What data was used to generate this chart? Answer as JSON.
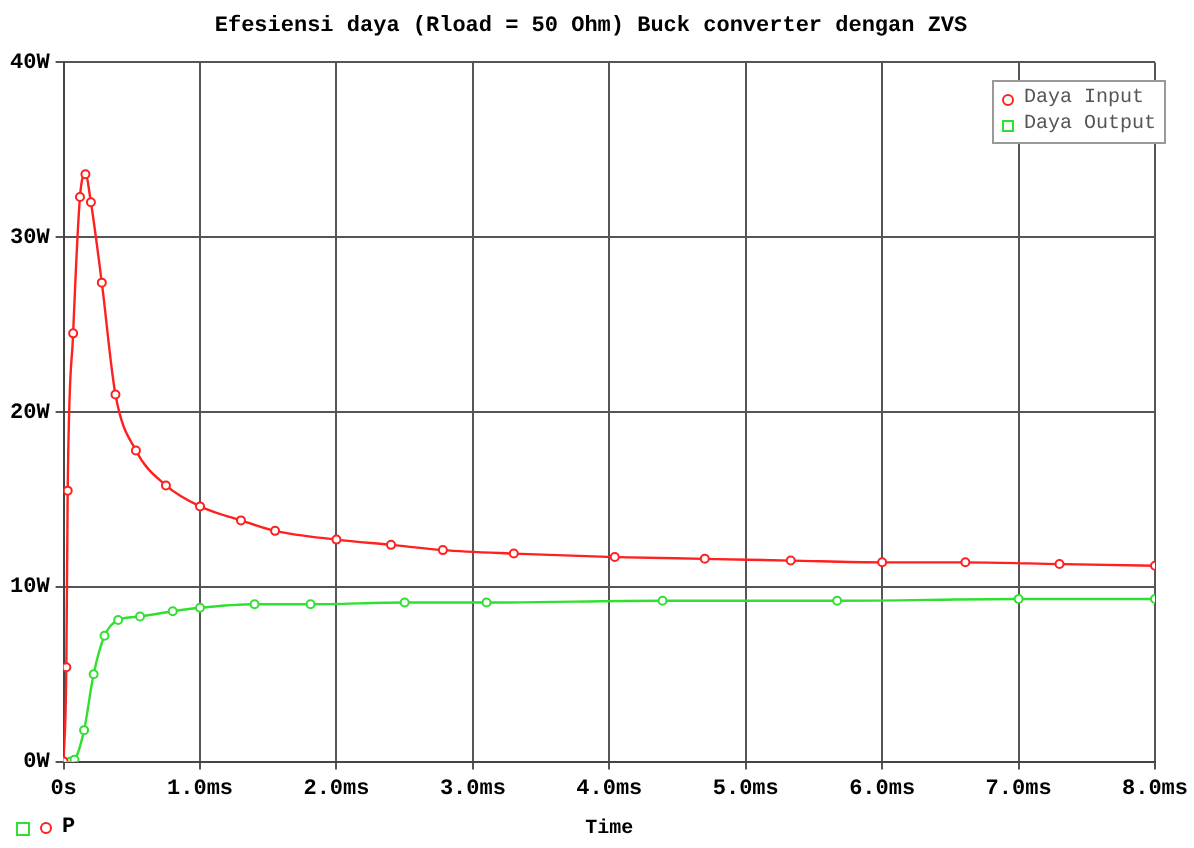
{
  "chart_data": {
    "type": "line",
    "title": "Efesiensi daya (Rload = 50 Ohm) Buck converter dengan ZVS",
    "xlabel": "Time",
    "annotations": [
      "P"
    ],
    "xlim": [
      0,
      8
    ],
    "xticks": [
      {
        "value": 0,
        "label": "0s"
      },
      {
        "value": 1,
        "label": "1.0ms"
      },
      {
        "value": 2,
        "label": "2.0ms"
      },
      {
        "value": 3,
        "label": "3.0ms"
      },
      {
        "value": 4,
        "label": "4.0ms"
      },
      {
        "value": 5,
        "label": "5.0ms"
      },
      {
        "value": 6,
        "label": "6.0ms"
      },
      {
        "value": 7,
        "label": "7.0ms"
      },
      {
        "value": 8,
        "label": "8.0ms"
      }
    ],
    "ylim": [
      0,
      40
    ],
    "yticks": [
      {
        "value": 0,
        "label": "0W"
      },
      {
        "value": 10,
        "label": "10W"
      },
      {
        "value": 20,
        "label": "20W"
      },
      {
        "value": 30,
        "label": "30W"
      },
      {
        "value": 40,
        "label": "40W"
      }
    ],
    "grid": true,
    "legend": "top right",
    "marker": "circle",
    "line_style": "solid",
    "series": [
      {
        "name": "Daya Input",
        "color": "#ff2020",
        "x": [
          0,
          0.02,
          0.03,
          0.07,
          0.12,
          0.16,
          0.2,
          0.28,
          0.38,
          0.53,
          0.75,
          1.0,
          1.3,
          1.55,
          2.0,
          2.4,
          2.78,
          3.3,
          4.04,
          4.7,
          5.33,
          6.0,
          6.61,
          7.3,
          8.0
        ],
        "values": [
          0,
          5.4,
          15.5,
          24.5,
          32.3,
          33.6,
          32,
          27.4,
          21,
          17.8,
          15.8,
          14.6,
          13.8,
          13.2,
          12.7,
          12.4,
          12.1,
          11.9,
          11.7,
          11.6,
          11.5,
          11.4,
          11.4,
          11.3,
          11.2
        ]
      },
      {
        "name": "Daya Output",
        "color": "#30e030",
        "x": [
          0,
          0.05,
          0.08,
          0.15,
          0.22,
          0.3,
          0.4,
          0.56,
          0.8,
          1.0,
          1.4,
          1.81,
          2.5,
          3.1,
          4.39,
          5.67,
          7.0,
          8.0
        ],
        "values": [
          0,
          0,
          0.1,
          1.8,
          5,
          7.2,
          8.1,
          8.3,
          8.6,
          8.8,
          9.0,
          9.0,
          9.1,
          9.1,
          9.2,
          9.2,
          9.3,
          9.3
        ]
      }
    ]
  }
}
